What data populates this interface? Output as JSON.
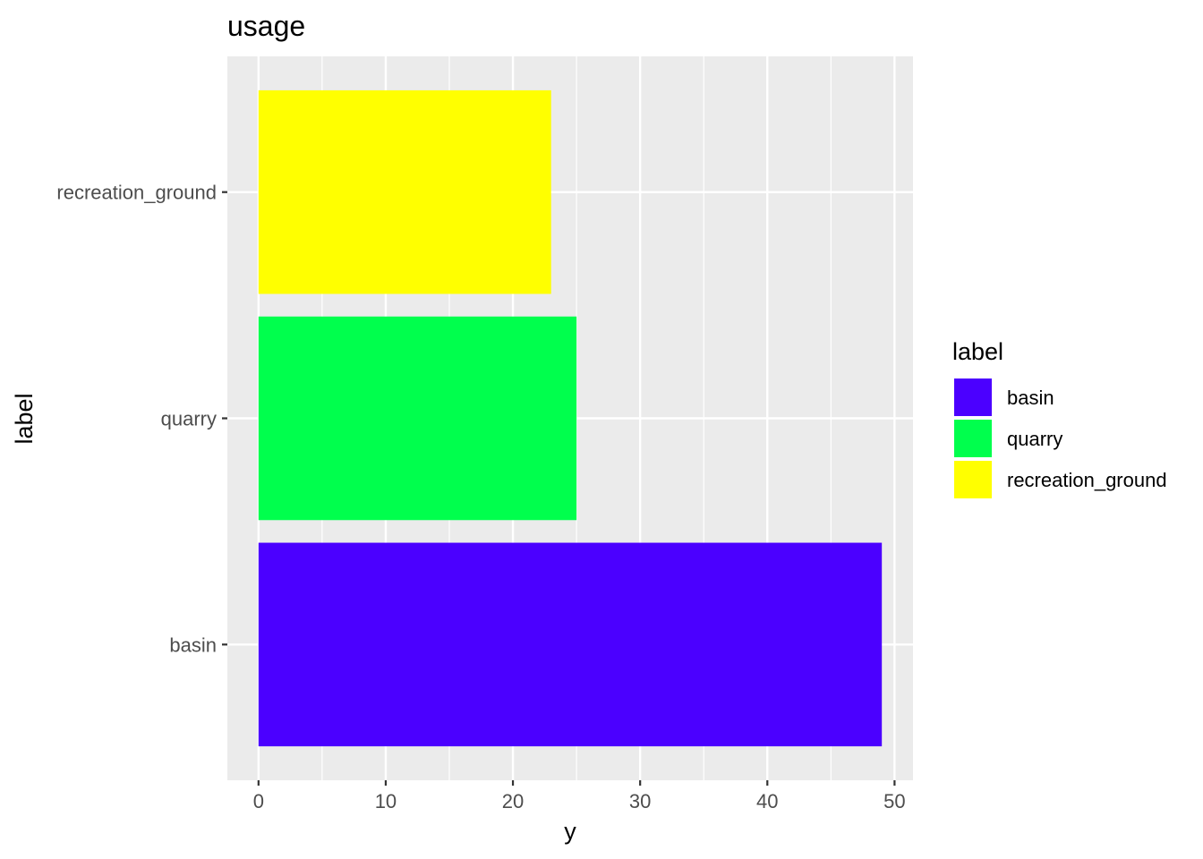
{
  "chart_data": {
    "type": "bar",
    "orientation": "horizontal",
    "title": "usage",
    "xlabel": "y",
    "ylabel": "label",
    "categories": [
      "basin",
      "quarry",
      "recreation_ground"
    ],
    "values": [
      49,
      25,
      23
    ],
    "colors": [
      "#4B00FF",
      "#00FF4D",
      "#FFFF00"
    ],
    "xlim": [
      -2.45,
      51.45
    ],
    "xticks": [
      0,
      10,
      20,
      30,
      40,
      50
    ],
    "grid": true,
    "panel_background": "#EBEBEB",
    "legend": {
      "title": "label",
      "placement": "right",
      "entries": [
        "basin",
        "quarry",
        "recreation_ground"
      ]
    }
  }
}
